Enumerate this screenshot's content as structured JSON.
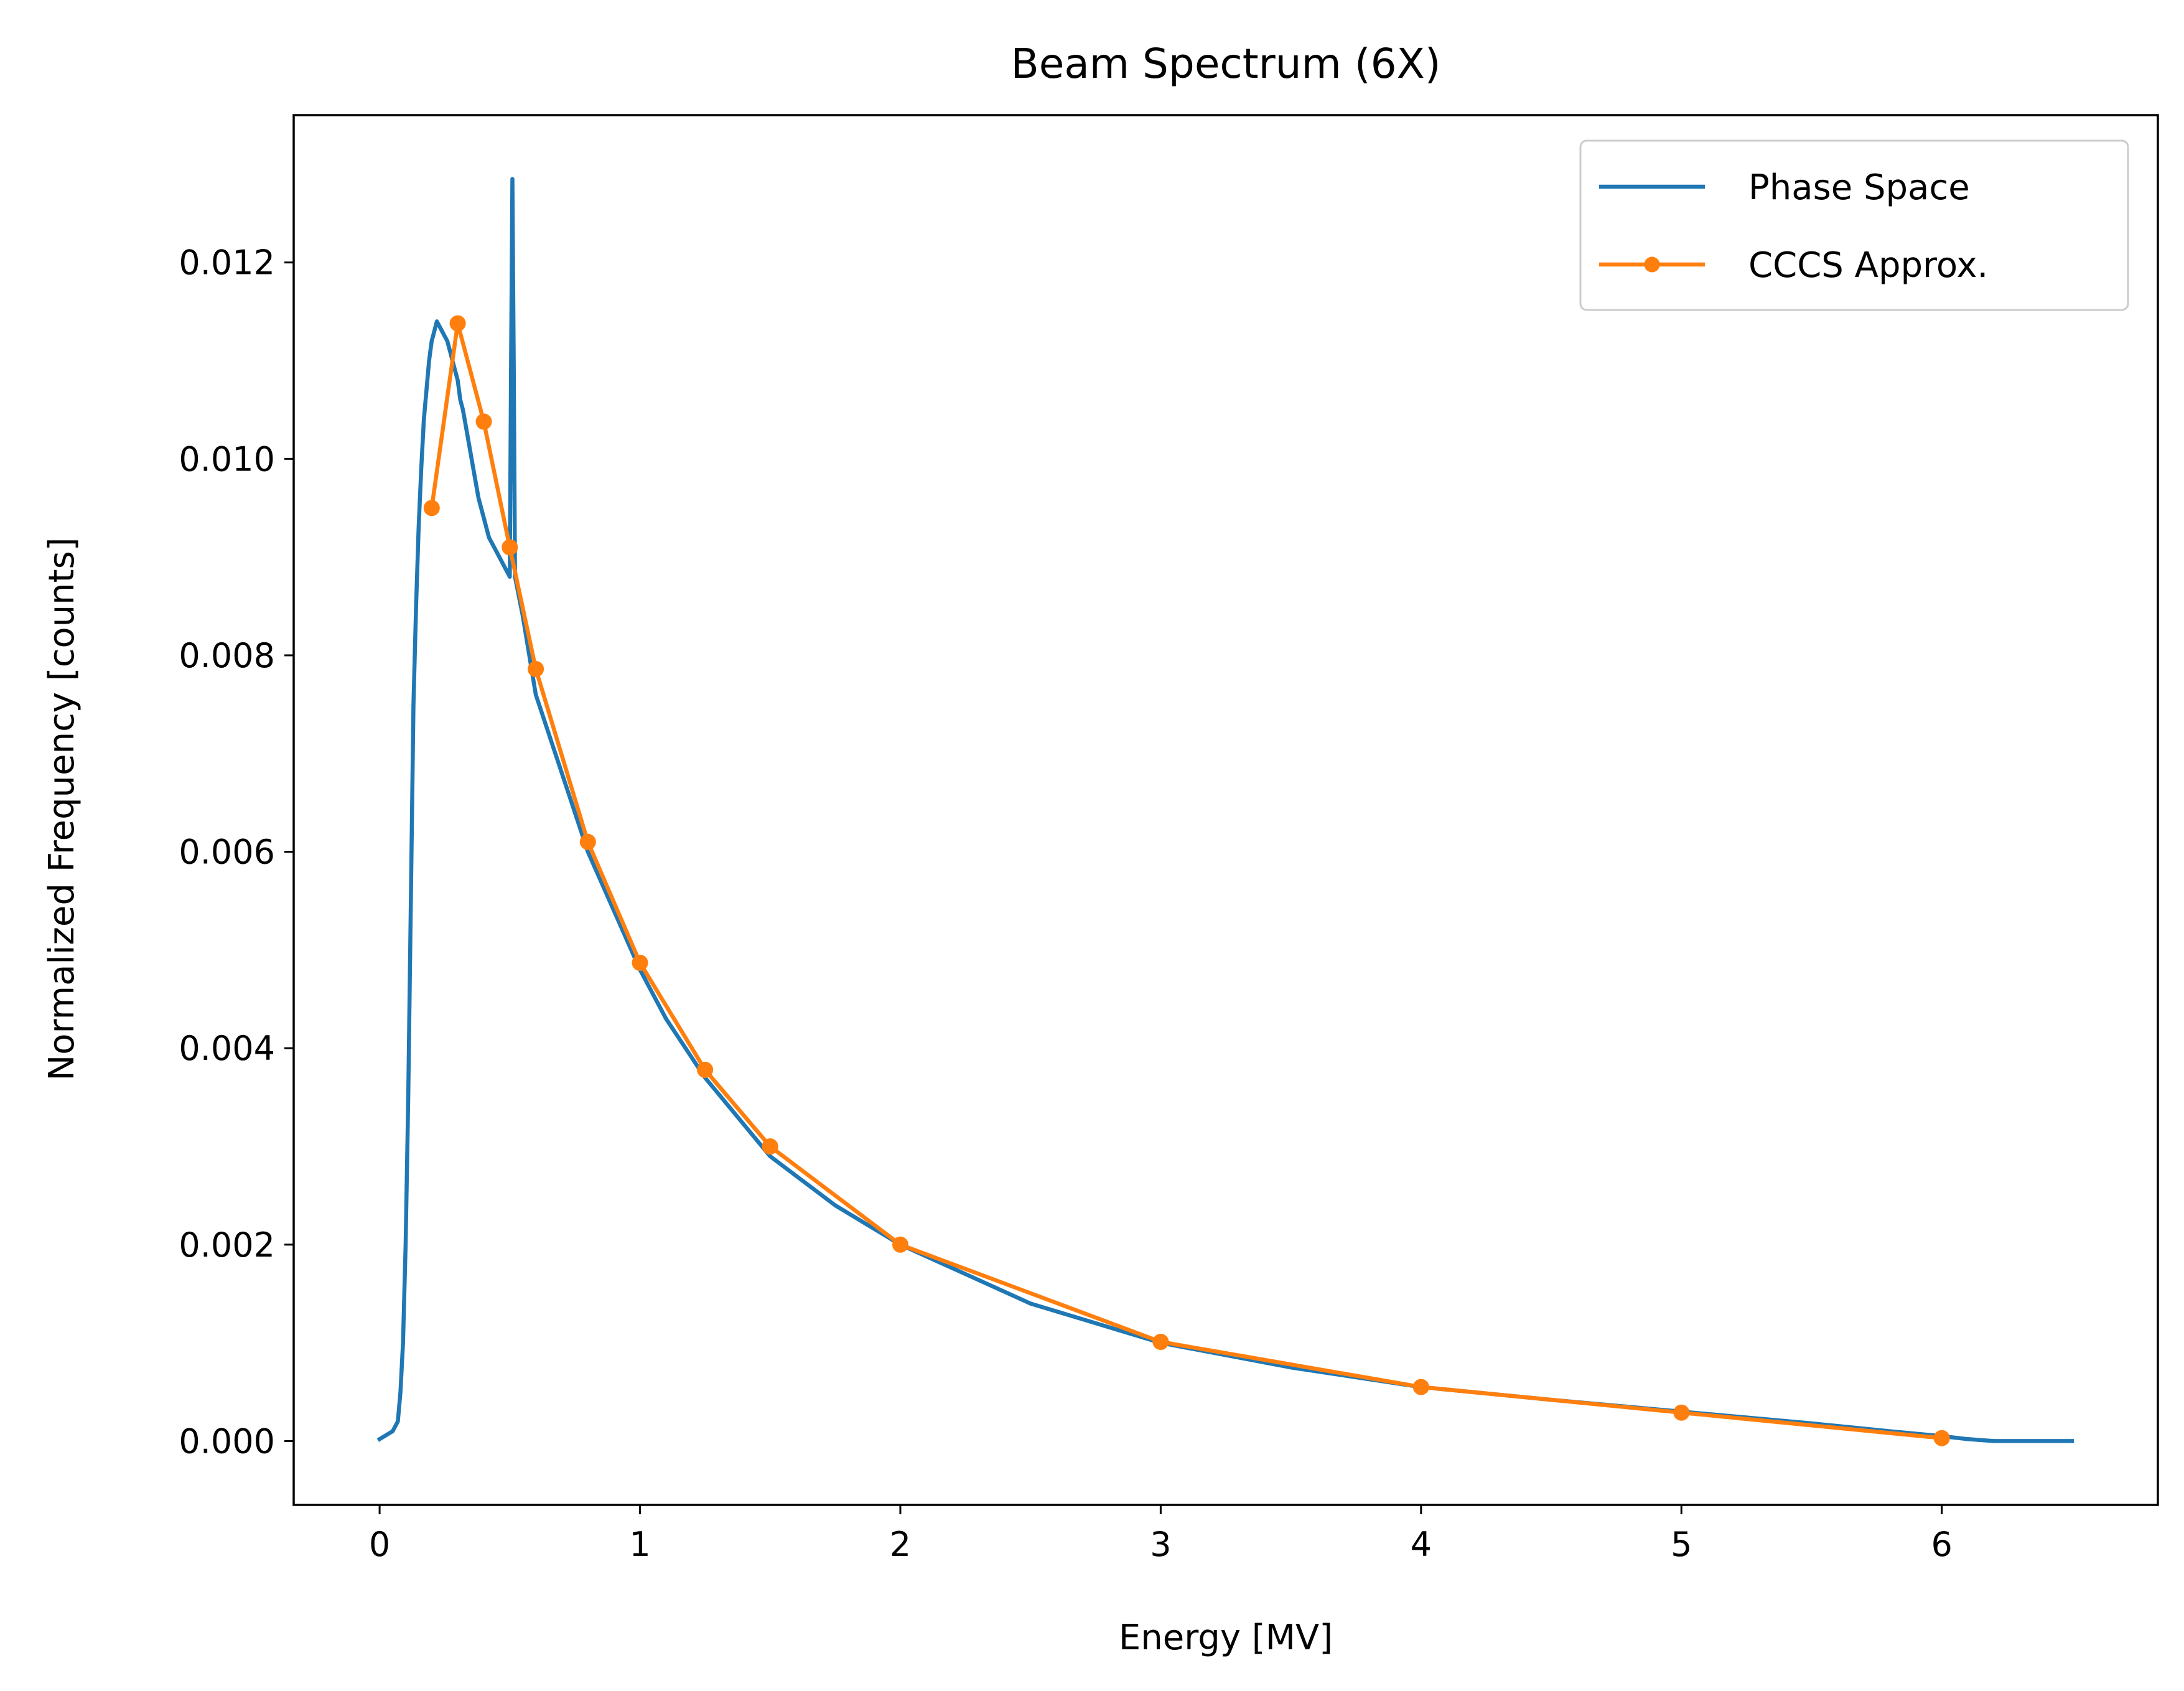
{
  "chart_data": {
    "type": "line",
    "title": "Beam Spectrum (6X)",
    "xlabel": "Energy [MV]",
    "ylabel": "Normalized Frequency [counts]",
    "xlim": [
      -0.33,
      6.83
    ],
    "ylim": [
      -0.00065,
      0.0135
    ],
    "xticks": [
      0,
      1,
      2,
      3,
      4,
      5,
      6
    ],
    "xtick_labels": [
      "0",
      "1",
      "2",
      "3",
      "4",
      "5",
      "6"
    ],
    "yticks": [
      0.0,
      0.002,
      0.004,
      0.006,
      0.008,
      0.01,
      0.012
    ],
    "ytick_labels": [
      "0.000",
      "0.002",
      "0.004",
      "0.006",
      "0.008",
      "0.010",
      "0.012"
    ],
    "grid": false,
    "legend_position": "top-right",
    "series": [
      {
        "name": "Phase Space",
        "color": "#1f77b4",
        "marker": "none",
        "x": [
          0.0,
          0.05,
          0.07,
          0.08,
          0.09,
          0.1,
          0.11,
          0.12,
          0.13,
          0.14,
          0.15,
          0.16,
          0.17,
          0.18,
          0.19,
          0.2,
          0.21,
          0.22,
          0.23,
          0.24,
          0.25,
          0.26,
          0.27,
          0.28,
          0.29,
          0.3,
          0.31,
          0.32,
          0.34,
          0.36,
          0.38,
          0.4,
          0.42,
          0.44,
          0.46,
          0.48,
          0.5,
          0.505,
          0.51,
          0.515,
          0.52,
          0.55,
          0.6,
          0.7,
          0.8,
          0.9,
          1.0,
          1.1,
          1.25,
          1.5,
          1.75,
          2.0,
          2.25,
          2.5,
          3.0,
          3.5,
          4.0,
          4.5,
          5.0,
          5.5,
          5.8,
          6.0,
          6.1,
          6.2,
          6.5
        ],
        "y": [
          2e-05,
          0.0001,
          0.0002,
          0.0005,
          0.001,
          0.002,
          0.0035,
          0.0055,
          0.0075,
          0.0085,
          0.0093,
          0.0099,
          0.0104,
          0.0107,
          0.011,
          0.0112,
          0.0113,
          0.0114,
          0.01135,
          0.0113,
          0.01125,
          0.0112,
          0.0111,
          0.011,
          0.0109,
          0.0108,
          0.0106,
          0.0105,
          0.0102,
          0.0099,
          0.0096,
          0.0094,
          0.0092,
          0.0091,
          0.009,
          0.0089,
          0.0088,
          0.011,
          0.01285,
          0.011,
          0.0088,
          0.0084,
          0.0076,
          0.0068,
          0.006,
          0.0054,
          0.0048,
          0.0043,
          0.0037,
          0.0029,
          0.0024,
          0.002,
          0.0017,
          0.0014,
          0.001,
          0.00075,
          0.00055,
          0.00042,
          0.0003,
          0.00018,
          0.0001,
          5e-05,
          2e-05,
          0.0,
          0.0
        ]
      },
      {
        "name": "CCCS Approx.",
        "color": "#ff7f0e",
        "marker": "circle",
        "x": [
          0.2,
          0.3,
          0.4,
          0.5,
          0.6,
          0.8,
          1.0,
          1.25,
          1.5,
          2.0,
          3.0,
          4.0,
          5.0,
          6.0
        ],
        "y": [
          0.0095,
          0.01138,
          0.01038,
          0.0091,
          0.00786,
          0.0061,
          0.00487,
          0.00378,
          0.003,
          0.002,
          0.00101,
          0.00055,
          0.00029,
          3e-05
        ]
      }
    ]
  }
}
